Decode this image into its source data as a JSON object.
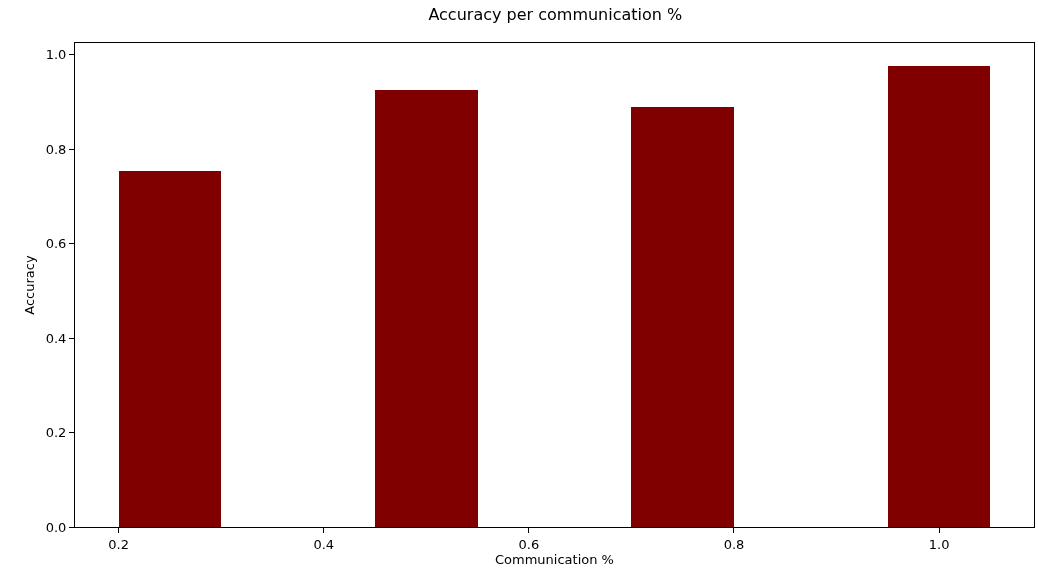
{
  "chart_data": {
    "type": "bar",
    "title": "Accuracy per communication %",
    "xlabel": "Communication %",
    "ylabel": "Accuracy",
    "x": [
      0.25,
      0.5,
      0.75,
      1.0
    ],
    "values": [
      0.753,
      0.926,
      0.89,
      0.977
    ],
    "color": "#800000",
    "xlim": [
      0.1575,
      1.0925
    ],
    "xticks": [
      0.2,
      0.4,
      0.6,
      0.8,
      {
        "value": 1,
        "label": "1.0"
      }
    ],
    "ylim": [
      0,
      1.025
    ],
    "yticks": [
      {
        "value": 0,
        "label": "0.0"
      },
      0.2,
      0.4,
      0.6,
      0.8,
      {
        "value": 1,
        "label": "1.0"
      }
    ],
    "grid": false,
    "legend": false
  }
}
